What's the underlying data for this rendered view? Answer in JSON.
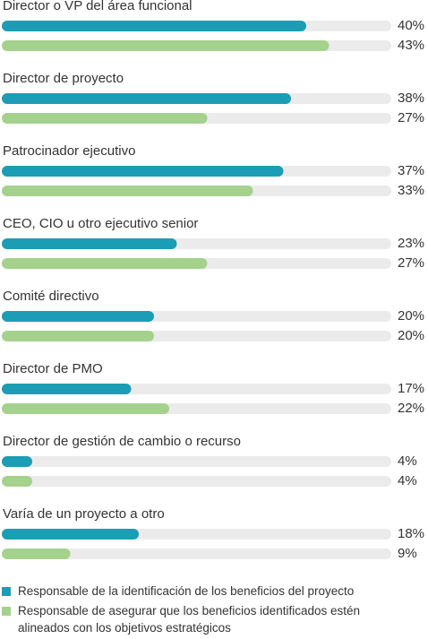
{
  "chart_data": {
    "type": "bar",
    "categories": [
      "Director o VP del área funcional",
      "Director de proyecto",
      "Patrocinador ejecutivo",
      "CEO, CIO u otro ejecutivo senior",
      "Comité directivo",
      "Director de PMO",
      "Director de gestión de cambio o recurso",
      "Varía de un proyecto a otro"
    ],
    "series": [
      {
        "name": "Responsable de la identificación de los beneficios del proyecto",
        "color": "#1b9db5",
        "values": [
          40,
          38,
          37,
          23,
          20,
          17,
          4,
          18
        ],
        "value_labels": [
          "40%",
          "38%",
          "37%",
          "23%",
          "20%",
          "17%",
          "4%",
          "18%"
        ]
      },
      {
        "name": "Responsable de asegurar que los beneficios identificados estén alineados con los objetivos estratégicos",
        "color": "#a4d28c",
        "values": [
          43,
          27,
          33,
          27,
          20,
          22,
          4,
          9
        ],
        "value_labels": [
          "43%",
          "27%",
          "33%",
          "27%",
          "20%",
          "22%",
          "4%",
          "9%"
        ]
      }
    ]
  }
}
